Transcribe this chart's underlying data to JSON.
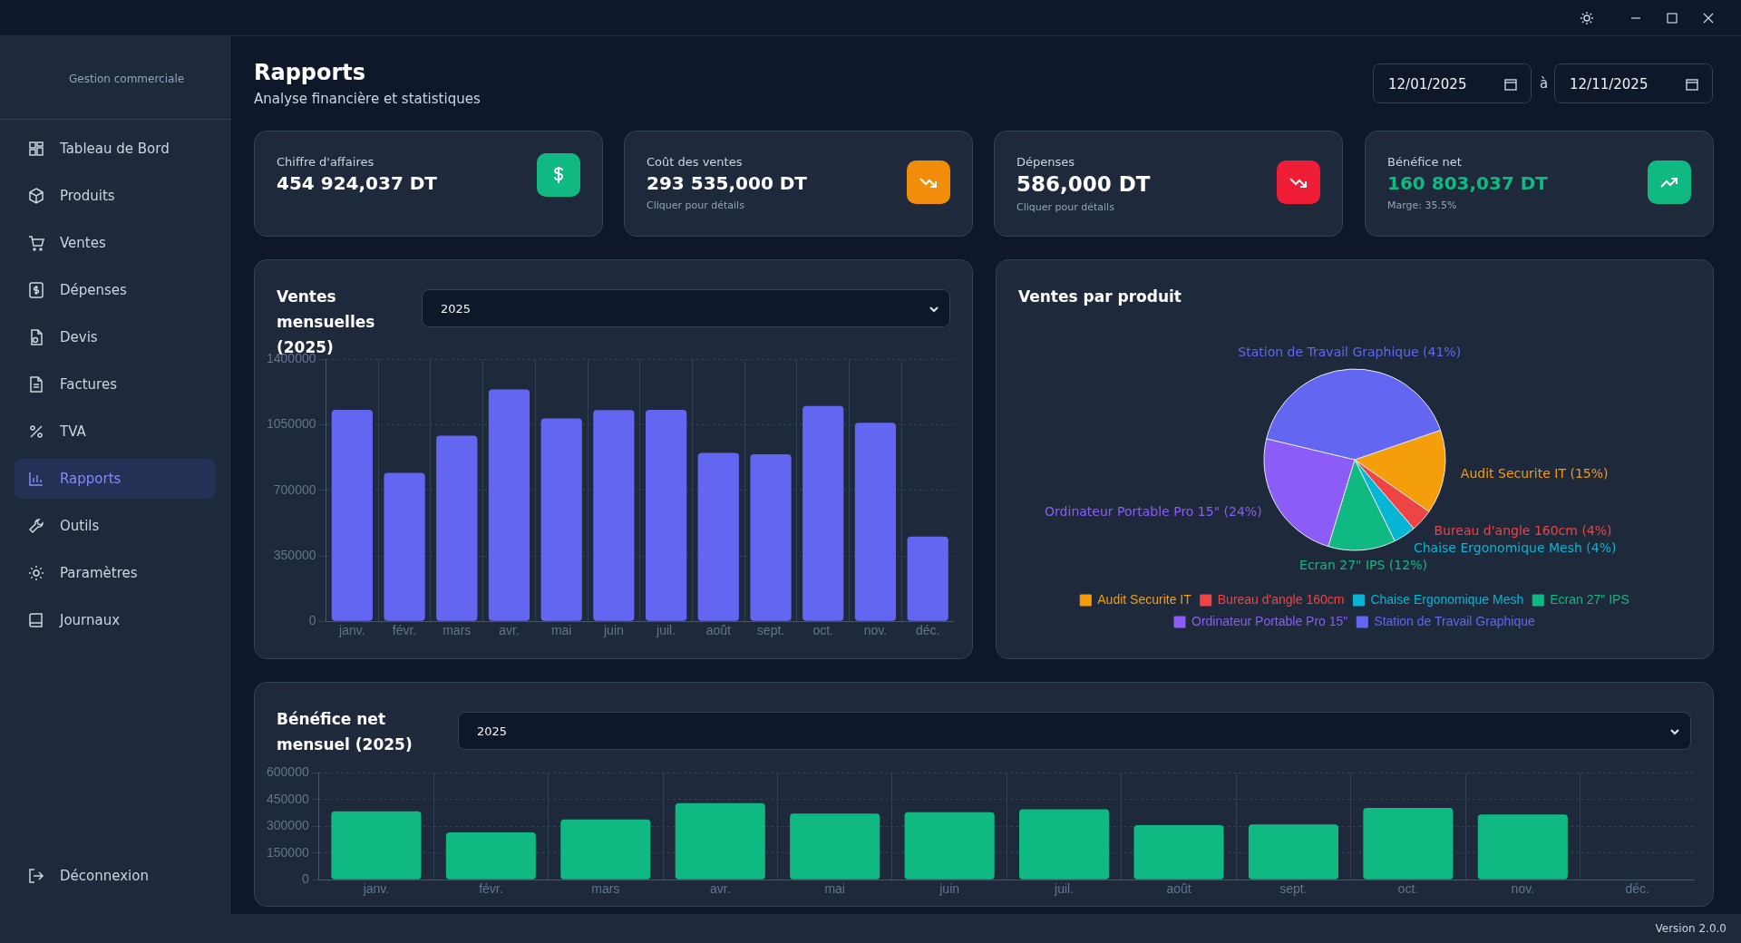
{
  "chart_data": [
    {
      "type": "other",
      "title": "Rapports",
      "subtitle": "Analyse financière et statistiques",
      "annotations": [
        "Gestion commerciale",
        "Tableau de Bord",
        "Produits",
        "Ventes",
        "Dépenses",
        "Devis",
        "Factures",
        "TVA",
        "Rapports",
        "Outils",
        "Paramètres",
        "Journaux",
        "Déconnexion",
        "12/01/2025",
        "à",
        "12/11/2025",
        "Chiffre d'affaires",
        "454 924,037 DT",
        "Coût des ventes",
        "293 535,000 DT",
        "Cliquer pour détails",
        "Dépenses",
        "586,000 DT",
        "Cliquer pour détails",
        "Bénéfice net",
        "160 803,037 DT",
        "Marge: 35.5%",
        "Version 2.0.0"
      ]
    },
    {
      "type": "bar",
      "title": "Ventes mensuelles (2025)",
      "annotations": [
        "2025"
      ],
      "categories": [
        "janv.",
        "févr.",
        "mars",
        "avr.",
        "mai",
        "juin",
        "juil.",
        "août",
        "sept.",
        "oct.",
        "nov.",
        "déc."
      ],
      "values": [
        1131000,
        793000,
        992000,
        1239000,
        1084000,
        1129000,
        1131000,
        900000,
        893000,
        1151000,
        1062000,
        453000
      ],
      "color": "#6366f1",
      "ylim": [
        0,
        1400000
      ],
      "yticks": [
        0,
        350000,
        700000,
        1050000,
        1400000
      ],
      "grid": true
    },
    {
      "type": "pie",
      "title": "Ventes par produit",
      "categories": [
        "Audit Securite IT",
        "Bureau d'angle 160cm",
        "Chaise Ergonomique Mesh",
        "Ecran 27\" IPS",
        "Ordinateur Portable Pro 15\"",
        "Station de Travail Graphique"
      ],
      "values": [
        15,
        4,
        4,
        12,
        24,
        41
      ],
      "colors": [
        "#f59e0b",
        "#ef4444",
        "#06b6d4",
        "#10b981",
        "#8b5cf6",
        "#6366f1"
      ],
      "value_labels": [
        "Audit Securite IT (15%)",
        "Bureau d'angle 160cm (4%)",
        "Chaise Ergonomique Mesh (4%)",
        "Ecran 27\" IPS (12%)",
        "Ordinateur Portable Pro 15\" (24%)",
        "Station de Travail Graphique (41%)"
      ],
      "legend": "bottom"
    },
    {
      "type": "bar",
      "title": "Bénéfice net mensuel (2025)",
      "annotations": [
        "2025"
      ],
      "categories": [
        "janv.",
        "févr.",
        "mars",
        "avr.",
        "mai",
        "juin",
        "juil.",
        "août",
        "sept.",
        "oct.",
        "nov.",
        "déc."
      ],
      "values": [
        384000,
        266000,
        338000,
        430000,
        372000,
        379000,
        396000,
        307000,
        310000,
        403000,
        367000,
        null
      ],
      "color": "#10b981",
      "ylim": [
        0,
        600000
      ],
      "yticks": [
        0,
        150000,
        300000,
        450000,
        600000
      ],
      "grid": true
    }
  ]
}
